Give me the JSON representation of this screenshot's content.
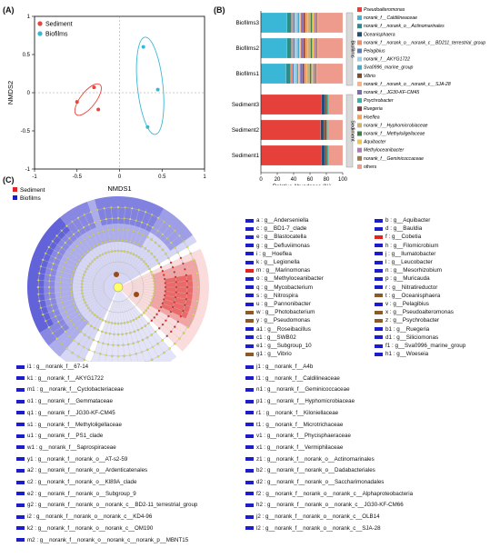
{
  "panels": {
    "a": "(A)",
    "b": "(B)",
    "c": "(C)"
  },
  "colors": {
    "sediment": "#e8453c",
    "biofilms": "#3ab7d6",
    "lefse_sediment": "#e02424",
    "lefse_biofilms": "#1d1dc8"
  },
  "chart_data": [
    {
      "type": "scatter",
      "panel": "(A)",
      "xlabel": "NMDS1",
      "ylabel": "NMDS2",
      "xlim": [
        -1,
        1
      ],
      "ylim": [
        -1,
        1
      ],
      "xticks": [
        "-1",
        "-0.5",
        "0",
        "0.5",
        "1"
      ],
      "yticks": [
        "-1",
        "-0.5",
        "0",
        "0.5",
        "1"
      ],
      "series": [
        {
          "name": "Sediment",
          "color": "#e8453c",
          "points": [
            [
              -0.5,
              -0.12
            ],
            [
              -0.3,
              0.07
            ],
            [
              -0.25,
              -0.22
            ]
          ]
        },
        {
          "name": "Biofilms",
          "color": "#3ab7d6",
          "points": [
            [
              0.28,
              0.6
            ],
            [
              0.45,
              0.04
            ],
            [
              0.33,
              -0.45
            ]
          ]
        }
      ]
    },
    {
      "type": "bar",
      "panel": "(B)",
      "orientation": "horizontal",
      "stacked": true,
      "xlabel": "Relative Abundance (%)",
      "xlim": [
        0,
        100
      ],
      "xticks": [
        "0",
        "20",
        "40",
        "60",
        "80",
        "100"
      ],
      "categories": [
        "Biofilms3",
        "Biofilms2",
        "Biofilms1",
        "Sediment3",
        "Sediment2",
        "Sediment1"
      ],
      "group_labels": [
        "Biofilms",
        "Sediment"
      ],
      "series": [
        {
          "name": "Pseudoalteromonas",
          "color": "#e5413a",
          "values": [
            0,
            0,
            0,
            74,
            73,
            74
          ]
        },
        {
          "name": "norank_f__Caldilineaceae",
          "color": "#3ab7d6",
          "values": [
            30,
            30,
            29,
            0,
            0,
            0
          ]
        },
        {
          "name": "norank_f__norank_o__Actinomarinales",
          "color": "#2a8d86",
          "values": [
            5,
            5,
            5,
            0,
            0,
            0
          ]
        },
        {
          "name": "Oceanisphaera",
          "color": "#1f4e79",
          "values": [
            0,
            0,
            0,
            4,
            4,
            4
          ]
        },
        {
          "name": "norank_f__norank_o__norank_c__BD211_terrestrial_group",
          "color": "#f08c6a",
          "values": [
            2,
            2,
            2,
            0,
            0,
            0
          ]
        },
        {
          "name": "Pelagibius",
          "color": "#5d7fb8",
          "values": [
            2,
            2,
            2,
            0,
            0,
            0
          ]
        },
        {
          "name": "norank_f__AKYG1722",
          "color": "#9fcde6",
          "values": [
            3,
            3,
            3,
            0,
            0,
            0
          ]
        },
        {
          "name": "Sva0996_marine_group",
          "color": "#4aa9c9",
          "values": [
            2,
            2,
            2,
            0,
            0,
            0
          ]
        },
        {
          "name": "Vibrio",
          "color": "#7e4a2a",
          "values": [
            0,
            0,
            0,
            3,
            3,
            3
          ]
        },
        {
          "name": "norank_f__norank_o__norank_c__SJA-28",
          "color": "#f2b48f",
          "values": [
            2,
            2,
            2,
            0,
            0,
            0
          ]
        },
        {
          "name": "norank_f__JG30-KF-CM45",
          "color": "#7a6cb3",
          "values": [
            3,
            3,
            3,
            0,
            0,
            0
          ]
        },
        {
          "name": "Psychrobacter",
          "color": "#3fae9d",
          "values": [
            0,
            0,
            0,
            2,
            2,
            2
          ]
        },
        {
          "name": "Ruegeria",
          "color": "#8b3a3a",
          "values": [
            2,
            2,
            2,
            0,
            0,
            0
          ]
        },
        {
          "name": "Hoeflea",
          "color": "#f3a05b",
          "values": [
            3,
            3,
            3,
            0,
            0,
            0
          ]
        },
        {
          "name": "norank_f__Hyphomicrobiaceae",
          "color": "#c9b27a",
          "values": [
            3,
            3,
            3,
            0,
            0,
            0
          ]
        },
        {
          "name": "norank_f__Methyloligellaceae",
          "color": "#3f7e4a",
          "values": [
            2,
            2,
            2,
            0,
            0,
            0
          ]
        },
        {
          "name": "Aquibacter",
          "color": "#f2c34c",
          "values": [
            2,
            2,
            2,
            0,
            0,
            0
          ]
        },
        {
          "name": "Methyloceanibacter",
          "color": "#b07ab8",
          "values": [
            2,
            2,
            2,
            0,
            0,
            0
          ]
        },
        {
          "name": "norank_f__Geminicoccaceae",
          "color": "#9b7a55",
          "values": [
            2,
            2,
            2,
            0,
            0,
            0
          ]
        },
        {
          "name": "others",
          "color": "#ee9a8d",
          "values": [
            29,
            29,
            30,
            17,
            18,
            17
          ]
        }
      ]
    },
    {
      "type": "other",
      "panel": "(C)",
      "legend": [
        {
          "name": "Sediment",
          "color": "#e02424"
        },
        {
          "name": "Biofilms",
          "color": "#1d1dc8"
        }
      ]
    }
  ],
  "lefse_legend": [
    {
      "text": "a : g__Anderseniella",
      "color": "#1d1dc8"
    },
    {
      "text": "b : g__Aquibacter",
      "color": "#1d1dc8"
    },
    {
      "text": "c : g__BD1-7_clade",
      "color": "#1d1dc8"
    },
    {
      "text": "d : g__Bauldia",
      "color": "#1d1dc8"
    },
    {
      "text": "e : g__Blastocatella",
      "color": "#1d1dc8"
    },
    {
      "text": "f : g__Cobetia",
      "color": "#e02424"
    },
    {
      "text": "g : g__Defluviimonas",
      "color": "#1d1dc8"
    },
    {
      "text": "h : g__Filomicrobium",
      "color": "#1d1dc8"
    },
    {
      "text": "i : g__Hoeflea",
      "color": "#1d1dc8"
    },
    {
      "text": "j : g__Ilumatobacter",
      "color": "#1d1dc8"
    },
    {
      "text": "k : g__Legionella",
      "color": "#1d1dc8"
    },
    {
      "text": "l : g__Leucobacter",
      "color": "#1d1dc8"
    },
    {
      "text": "m : g__Marinomonas",
      "color": "#e02424"
    },
    {
      "text": "n : g__Mesorhizobium",
      "color": "#1d1dc8"
    },
    {
      "text": "o : g__Methyloceanibacter",
      "color": "#1d1dc8"
    },
    {
      "text": "p : g__Muricauda",
      "color": "#1d1dc8"
    },
    {
      "text": "q : g__Mycobacterium",
      "color": "#1d1dc8"
    },
    {
      "text": "r : g__Nitratireductor",
      "color": "#1d1dc8"
    },
    {
      "text": "s : g__Nitrospira",
      "color": "#1d1dc8"
    },
    {
      "text": "t : g__Oceanisphaera",
      "color": "#8b5a2b"
    },
    {
      "text": "u : g__Pannonibacter",
      "color": "#1d1dc8"
    },
    {
      "text": "v : g__Pelagibius",
      "color": "#1d1dc8"
    },
    {
      "text": "w : g__Photobacterium",
      "color": "#8b5a2b"
    },
    {
      "text": "x : g__Pseudoalteromonas",
      "color": "#8b5a2b"
    },
    {
      "text": "y : g__Pseudomonas",
      "color": "#8b5a2b"
    },
    {
      "text": "z : g__Psychrobacter",
      "color": "#8b5a2b"
    },
    {
      "text": "a1 : g__Roseibacillus",
      "color": "#1d1dc8"
    },
    {
      "text": "b1 : g__Ruegeria",
      "color": "#1d1dc8"
    },
    {
      "text": "c1 : g__SWB02",
      "color": "#1d1dc8"
    },
    {
      "text": "d1 : g__Siliciomonas",
      "color": "#1d1dc8"
    },
    {
      "text": "e1 : g__Subgroup_10",
      "color": "#1d1dc8"
    },
    {
      "text": "f1 : g__Sva0996_marine_group",
      "color": "#1d1dc8"
    },
    {
      "text": "g1 : g__Vibrio",
      "color": "#8b5a2b"
    },
    {
      "text": "h1 : g__Woeseia",
      "color": "#1d1dc8"
    }
  ],
  "bottom_left": [
    "i1 : g__norank_f__67-14",
    "k1 : g__norank_f__AKYG1722",
    "m1 : g__norank_f__Cyclobacteriaceae",
    "o1 : g__norank_f__Gemmataceae",
    "q1 : g__norank_f__JG30-KF-CM45",
    "s1 : g__norank_f__Methyloligellaceae",
    "u1 : g__norank_f__PS1_clade",
    "w1 : g__norank_f__Saprospiraceae",
    "y1 : g__norank_f__norank_o__AT-s2-59",
    "a2 : g__norank_f__norank_o__Ardenticatenales",
    "c2 : g__norank_f__norank_o__Kl89A_clade",
    "e2 : g__norank_f__norank_o__Subgroup_9",
    "g2 : g__norank_f__norank_o__norank_c__BD2-11_terrestrial_group",
    "i2 : g__norank_f__norank_o__norank_c__KD4-96",
    "k2 : g__norank_f__norank_o__norank_c__OM190",
    "m2 : g__norank_f__norank_o__norank_c__norank_p__MBNT15"
  ],
  "bottom_right": [
    "j1 : g__norank_f__A4b",
    "l1 : g__norank_f__Caldilineaceae",
    "n1 : g__norank_f__Geminicoccaceae",
    "p1 : g__norank_f__Hyphomicrobiaceae",
    "r1 : g__norank_f__Kiloniellaceae",
    "t1 : g__norank_f__Microtrichaceae",
    "v1 : g__norank_f__Phycisphaeraceae",
    "x1 : g__norank_f__Vermiphilaceae",
    "z1 : g__norank_f__norank_o__Actinomarinales",
    "b2 : g__norank_f__norank_o__Dadabacteriales",
    "d2 : g__norank_f__norank_o__Saccharimonadales",
    "f2 : g__norank_f__norank_o__norank_c__Alphaproteobacteria",
    "h2 : g__norank_f__norank_o__norank_c__JG30-KF-CM66",
    "j2 : g__norank_f__norank_o__norank_c__OLB14",
    "l2 : g__norank_f__norank_o__norank_c__SJA-28"
  ]
}
